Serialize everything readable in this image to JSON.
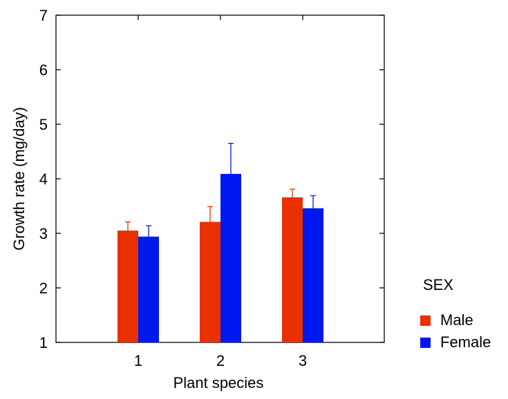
{
  "chart_data": {
    "type": "bar",
    "title": "",
    "xlabel": "Plant species",
    "ylabel": "Growth rate (mg/day)",
    "categories": [
      "1",
      "2",
      "3"
    ],
    "ylim": [
      1,
      7
    ],
    "yticks": [
      "1",
      "2",
      "3",
      "4",
      "5",
      "6",
      "7"
    ],
    "grid": false,
    "legend": {
      "title": "SEX",
      "placement": "right",
      "entries": [
        "Male",
        "Female"
      ]
    },
    "series": [
      {
        "name": "Male",
        "color": "#e83000",
        "values": [
          3.05,
          3.21,
          3.66
        ],
        "errors": [
          0.16,
          0.28,
          0.15
        ]
      },
      {
        "name": "Female",
        "color": "#0018f0",
        "values": [
          2.94,
          4.09,
          3.46
        ],
        "errors": [
          0.2,
          0.56,
          0.23
        ]
      }
    ]
  }
}
